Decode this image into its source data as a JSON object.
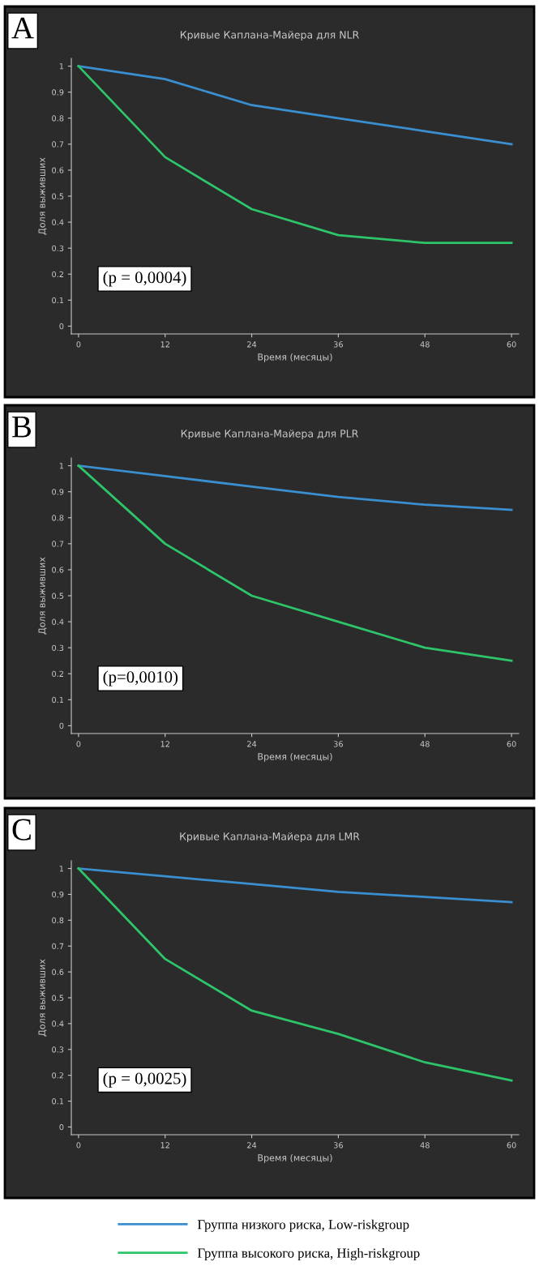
{
  "chart_data": [
    {
      "type": "line",
      "title": "Кривые Каплана-Майера для NLR",
      "xlabel": "Время (месяцы)",
      "ylabel": "Доля выживших",
      "annotations": [
        "A",
        "(p = 0,0004)"
      ],
      "x": [
        0,
        12,
        24,
        36,
        48,
        60
      ],
      "xlim": [
        -1,
        61
      ],
      "ylim": [
        -0.03,
        1.03
      ],
      "xticks": [
        0,
        12,
        24,
        36,
        48,
        60
      ],
      "yticks": [
        0,
        0.1,
        0.2,
        0.3,
        0.4,
        0.5,
        0.6,
        0.7,
        0.8,
        0.9,
        1
      ],
      "grid": false,
      "legend": false,
      "series": [
        {
          "color": "#3a8fd0",
          "values": [
            1,
            0.95,
            0.85,
            0.8,
            0.75,
            0.7
          ]
        },
        {
          "color": "#2ec46a",
          "values": [
            1,
            0.65,
            0.45,
            0.35,
            0.32,
            0.32
          ]
        }
      ]
    },
    {
      "type": "line",
      "title": "Кривые Каплана-Майера для PLR",
      "xlabel": "Время (месяцы)",
      "ylabel": "Доля выживших",
      "annotations": [
        "B",
        "(p=0,0010)"
      ],
      "x": [
        0,
        12,
        24,
        36,
        48,
        60
      ],
      "xlim": [
        -1,
        61
      ],
      "ylim": [
        -0.03,
        1.03
      ],
      "xticks": [
        0,
        12,
        24,
        36,
        48,
        60
      ],
      "yticks": [
        0,
        0.1,
        0.2,
        0.3,
        0.4,
        0.5,
        0.6,
        0.7,
        0.8,
        0.9,
        1
      ],
      "grid": false,
      "legend": false,
      "series": [
        {
          "color": "#3a8fd0",
          "values": [
            1,
            0.96,
            0.92,
            0.88,
            0.85,
            0.83
          ]
        },
        {
          "color": "#2ec46a",
          "values": [
            1,
            0.7,
            0.5,
            0.4,
            0.3,
            0.25
          ]
        }
      ]
    },
    {
      "type": "line",
      "title": "Кривые Каплана-Майера для LMR",
      "xlabel": "Время (месяцы)",
      "ylabel": "Доля выживших",
      "annotations": [
        "C",
        "(p = 0,0025)"
      ],
      "x": [
        0,
        12,
        24,
        36,
        48,
        60
      ],
      "xlim": [
        -1,
        61
      ],
      "ylim": [
        -0.03,
        1.03
      ],
      "xticks": [
        0,
        12,
        24,
        36,
        48,
        60
      ],
      "yticks": [
        0,
        0.1,
        0.2,
        0.3,
        0.4,
        0.5,
        0.6,
        0.7,
        0.8,
        0.9,
        1
      ],
      "grid": false,
      "legend": "bottom",
      "series": [
        {
          "name": "Группа низкого риска, Low-riskgroup",
          "color": "#3a8fd0",
          "values": [
            1,
            0.97,
            0.94,
            0.91,
            0.89,
            0.87
          ]
        },
        {
          "name": "Группа высокого риска, High-riskgroup",
          "color": "#2ec46a",
          "values": [
            1,
            0.65,
            0.45,
            0.36,
            0.25,
            0.18
          ]
        }
      ]
    }
  ]
}
